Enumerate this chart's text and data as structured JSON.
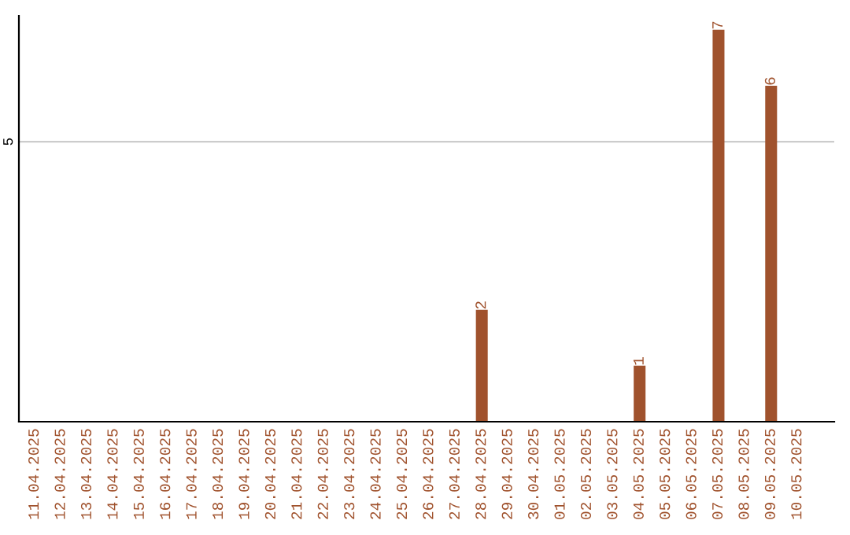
{
  "chart_data": {
    "type": "bar",
    "categories": [
      "11.04.2025",
      "12.04.2025",
      "13.04.2025",
      "14.04.2025",
      "15.04.2025",
      "16.04.2025",
      "17.04.2025",
      "18.04.2025",
      "19.04.2025",
      "20.04.2025",
      "21.04.2025",
      "22.04.2025",
      "23.04.2025",
      "24.04.2025",
      "25.04.2025",
      "26.04.2025",
      "27.04.2025",
      "28.04.2025",
      "29.04.2025",
      "30.04.2025",
      "01.05.2025",
      "02.05.2025",
      "03.05.2025",
      "04.05.2025",
      "05.05.2025",
      "06.05.2025",
      "07.05.2025",
      "08.05.2025",
      "09.05.2025",
      "10.05.2025"
    ],
    "values": [
      null,
      null,
      null,
      null,
      null,
      null,
      null,
      null,
      null,
      null,
      null,
      null,
      null,
      null,
      null,
      null,
      null,
      2,
      null,
      null,
      null,
      null,
      null,
      1,
      null,
      null,
      7,
      null,
      6,
      null
    ],
    "value_labels": [
      null,
      null,
      null,
      null,
      null,
      null,
      null,
      null,
      null,
      null,
      null,
      null,
      null,
      null,
      null,
      null,
      null,
      "2",
      null,
      null,
      null,
      null,
      null,
      "1",
      null,
      null,
      "7",
      null,
      "6",
      null
    ],
    "color": "#a0522d",
    "data_labels": true,
    "ylim": [
      0,
      7.25
    ],
    "yticks": [
      5
    ],
    "grid": "y"
  }
}
